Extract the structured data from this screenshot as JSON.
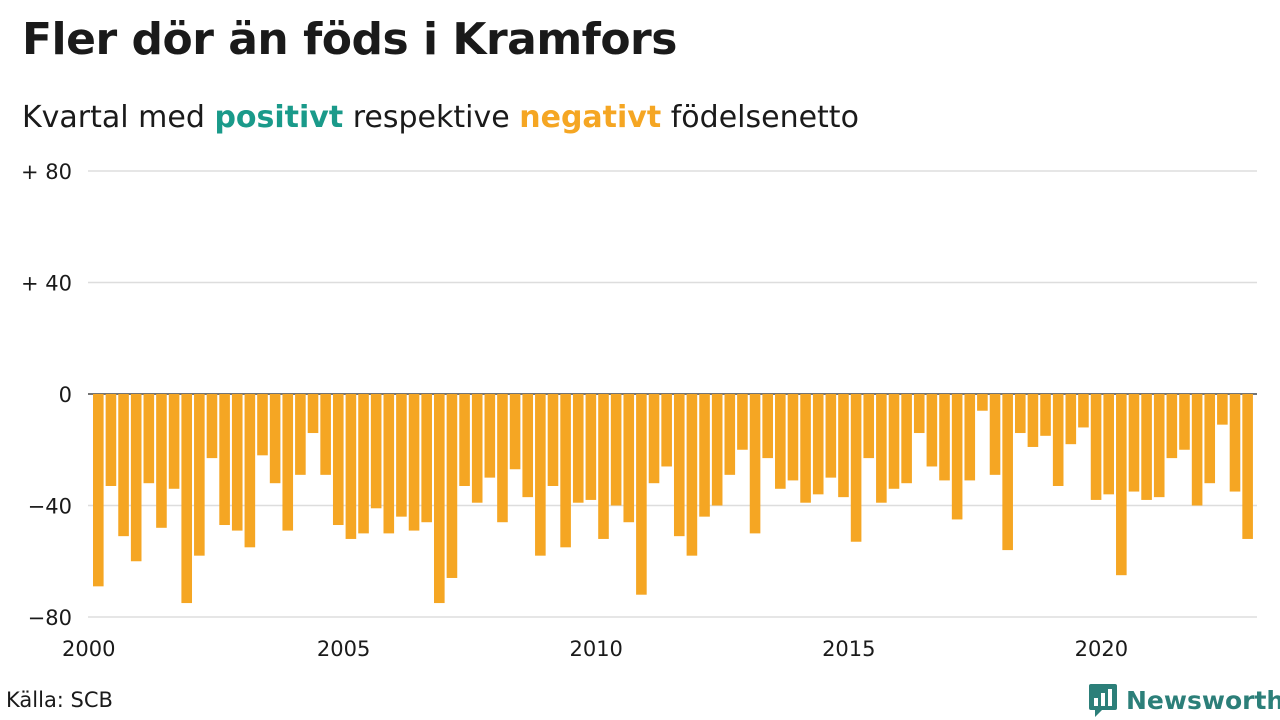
{
  "header": {
    "title": "Fler dör än föds i Kramfors",
    "subtitle_pre": "Kvartal med",
    "subtitle_pos": "positivt",
    "subtitle_mid": "respektive",
    "subtitle_neg": "negativt",
    "subtitle_post": "födelsenetto"
  },
  "footer": {
    "source": "Källa: SCB",
    "brand": "Newsworthy"
  },
  "colors": {
    "positive": "#1a9a8a",
    "negative": "#f5a623",
    "grid": "#dddddd",
    "brand": "#2c7f79"
  },
  "chart_data": {
    "type": "bar",
    "ylim": [
      -80,
      80
    ],
    "yticks": [
      {
        "value": 80,
        "label": "+ 80"
      },
      {
        "value": 40,
        "label": "+ 40"
      },
      {
        "value": 0,
        "label": "0"
      },
      {
        "value": -40,
        "label": "−40"
      },
      {
        "value": -80,
        "label": "−80"
      }
    ],
    "xticks": [
      {
        "label": "2000",
        "index": 0
      },
      {
        "label": "2005",
        "index": 20
      },
      {
        "label": "2010",
        "index": 40
      },
      {
        "label": "2015",
        "index": 60
      },
      {
        "label": "2020",
        "index": 80
      }
    ],
    "series": [
      {
        "values": [
          -69,
          -33,
          -51,
          -60,
          -32,
          -48,
          -34,
          -75,
          -58,
          -23,
          -47,
          -49,
          -55,
          -22,
          -32,
          -49,
          -29,
          -14,
          -29,
          -47,
          -52,
          -50,
          -41,
          -50,
          -44,
          -49,
          -46,
          -75,
          -66,
          -33,
          -39,
          -30,
          -46,
          -27,
          -37,
          -58,
          -33,
          -55,
          -39,
          -38,
          -52,
          -40,
          -46,
          -72,
          -32,
          -26,
          -51,
          -58,
          -44,
          -40,
          -29,
          -20,
          -50,
          -23,
          -34,
          -31,
          -39,
          -36,
          -30,
          -37,
          -53,
          -23,
          -39,
          -34,
          -32,
          -14,
          -26,
          -31,
          -45,
          -31,
          -6,
          -29,
          -56,
          -14,
          -19,
          -15,
          -33,
          -18,
          -12,
          -38,
          -36,
          -65,
          -35,
          -38,
          -37,
          -23,
          -20,
          -40,
          -32,
          -11,
          -35,
          -52
        ]
      }
    ]
  }
}
